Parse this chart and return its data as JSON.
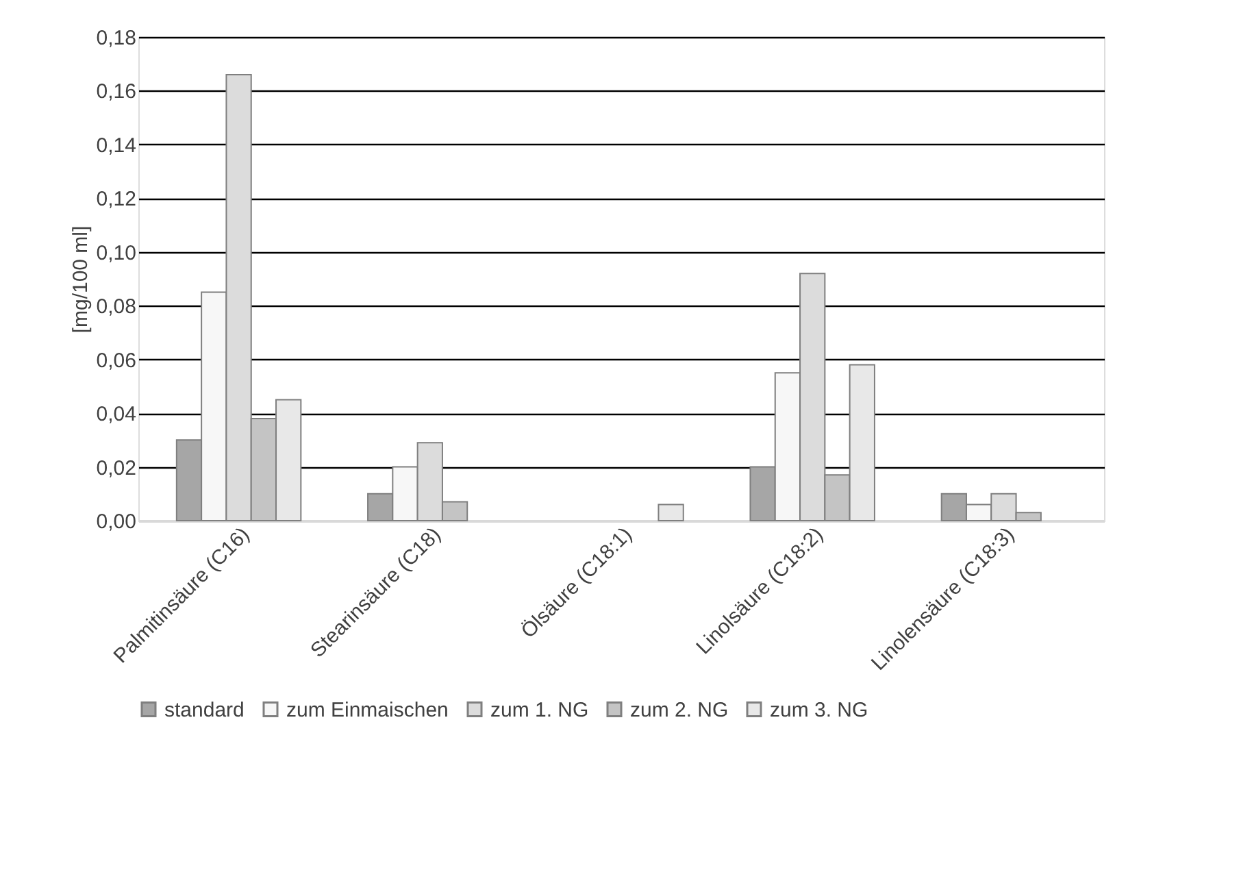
{
  "chart_data": {
    "type": "bar",
    "ylabel": "[mg/100 ml]",
    "categories": [
      "Palmitinsäure (C16)",
      "Stearinsäure (C18)",
      "Ölsäure (C18:1)",
      "Linolsäure (C18:2)",
      "Linolensäure (C18:3)"
    ],
    "series": [
      {
        "name": "standard",
        "color": "#a6a6a6",
        "values": [
          0.03,
          0.01,
          null,
          0.02,
          0.01
        ]
      },
      {
        "name": "zum Einmaischen",
        "color": "#f7f7f7",
        "values": [
          0.085,
          0.02,
          null,
          0.055,
          0.006
        ]
      },
      {
        "name": "zum 1. NG",
        "color": "#dcdcdc",
        "values": [
          0.166,
          0.029,
          null,
          0.092,
          0.01
        ]
      },
      {
        "name": "zum 2. NG",
        "color": "#c4c4c4",
        "values": [
          0.038,
          0.007,
          null,
          0.017,
          0.003
        ]
      },
      {
        "name": "zum 3. NG",
        "color": "#e8e8e8",
        "values": [
          0.045,
          null,
          0.006,
          0.058,
          null
        ]
      }
    ],
    "ylim": [
      0,
      0.18
    ],
    "yticks": [
      {
        "value": 0,
        "label": "0,00"
      },
      {
        "value": 0.02,
        "label": "0,02"
      },
      {
        "value": 0.04,
        "label": "0,04"
      },
      {
        "value": 0.06,
        "label": "0,06"
      },
      {
        "value": 0.08,
        "label": "0,08"
      },
      {
        "value": 0.1,
        "label": "0,10"
      },
      {
        "value": 0.12,
        "label": "0,12"
      },
      {
        "value": 0.14,
        "label": "0,14"
      },
      {
        "value": 0.16,
        "label": "0,16"
      },
      {
        "value": 0.18,
        "label": "0,18"
      }
    ],
    "grid": "y",
    "legend": "bottom"
  }
}
